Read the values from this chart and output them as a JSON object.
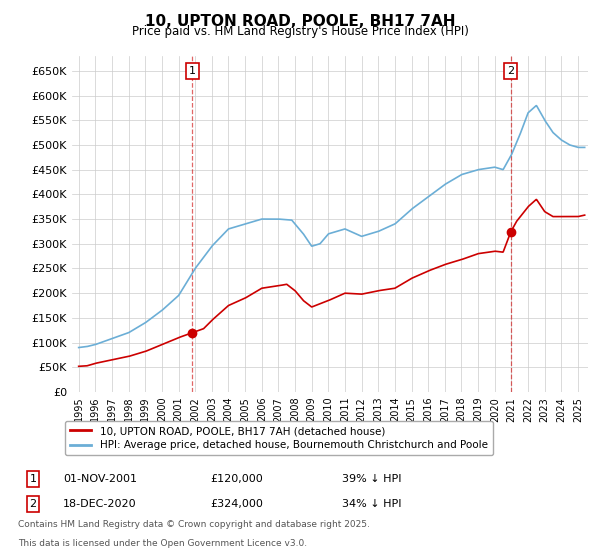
{
  "title": "10, UPTON ROAD, POOLE, BH17 7AH",
  "subtitle": "Price paid vs. HM Land Registry's House Price Index (HPI)",
  "ylim": [
    0,
    680000
  ],
  "yticks": [
    0,
    50000,
    100000,
    150000,
    200000,
    250000,
    300000,
    350000,
    400000,
    450000,
    500000,
    550000,
    600000,
    650000
  ],
  "ytick_labels": [
    "£0",
    "£50K",
    "£100K",
    "£150K",
    "£200K",
    "£250K",
    "£300K",
    "£350K",
    "£400K",
    "£450K",
    "£500K",
    "£550K",
    "£600K",
    "£650K"
  ],
  "sale1_date": "01-NOV-2001",
  "sale1_price": 120000,
  "sale1_label": "39% ↓ HPI",
  "sale2_date": "18-DEC-2020",
  "sale2_price": 324000,
  "sale2_label": "34% ↓ HPI",
  "sale1_x": 2001.83,
  "sale2_x": 2020.96,
  "red_color": "#cc0000",
  "blue_color": "#6baed6",
  "grid_color": "#cccccc",
  "legend1": "10, UPTON ROAD, POOLE, BH17 7AH (detached house)",
  "legend2": "HPI: Average price, detached house, Bournemouth Christchurch and Poole",
  "footnote1": "Contains HM Land Registry data © Crown copyright and database right 2025.",
  "footnote2": "This data is licensed under the Open Government Licence v3.0.",
  "background_color": "#ffffff",
  "hpi_anchors_t": [
    1995.0,
    1995.5,
    1996.0,
    1997.0,
    1998.0,
    1999.0,
    2000.0,
    2001.0,
    2002.0,
    2003.0,
    2004.0,
    2005.0,
    2006.0,
    2007.0,
    2007.8,
    2008.5,
    2009.0,
    2009.5,
    2010.0,
    2011.0,
    2012.0,
    2013.0,
    2014.0,
    2015.0,
    2016.0,
    2017.0,
    2018.0,
    2019.0,
    2020.0,
    2020.5,
    2021.0,
    2021.5,
    2022.0,
    2022.5,
    2023.0,
    2023.5,
    2024.0,
    2024.5,
    2025.0,
    2025.4
  ],
  "hpi_anchors_v": [
    90000,
    92000,
    96000,
    108000,
    120000,
    140000,
    165000,
    195000,
    250000,
    295000,
    330000,
    340000,
    350000,
    350000,
    348000,
    320000,
    295000,
    300000,
    320000,
    330000,
    315000,
    325000,
    340000,
    370000,
    395000,
    420000,
    440000,
    450000,
    455000,
    450000,
    480000,
    520000,
    565000,
    580000,
    550000,
    525000,
    510000,
    500000,
    495000,
    495000
  ],
  "price_anchors_t": [
    1995.0,
    1995.5,
    1996.0,
    1997.0,
    1998.0,
    1999.0,
    2000.0,
    2001.0,
    2001.83,
    2002.5,
    2003.0,
    2004.0,
    2005.0,
    2006.0,
    2007.0,
    2007.5,
    2008.0,
    2008.5,
    2009.0,
    2010.0,
    2011.0,
    2012.0,
    2013.0,
    2014.0,
    2015.0,
    2016.0,
    2017.0,
    2018.0,
    2019.0,
    2020.0,
    2020.5,
    2020.96,
    2021.3,
    2022.0,
    2022.5,
    2023.0,
    2023.5,
    2024.0,
    2024.5,
    2025.0,
    2025.4
  ],
  "price_anchors_v": [
    52000,
    53000,
    58000,
    65000,
    72000,
    82000,
    96000,
    110000,
    120000,
    128000,
    145000,
    175000,
    190000,
    210000,
    215000,
    218000,
    205000,
    185000,
    172000,
    185000,
    200000,
    198000,
    205000,
    210000,
    230000,
    245000,
    258000,
    268000,
    280000,
    285000,
    283000,
    324000,
    345000,
    375000,
    390000,
    365000,
    355000,
    355000,
    355000,
    355000,
    358000
  ]
}
